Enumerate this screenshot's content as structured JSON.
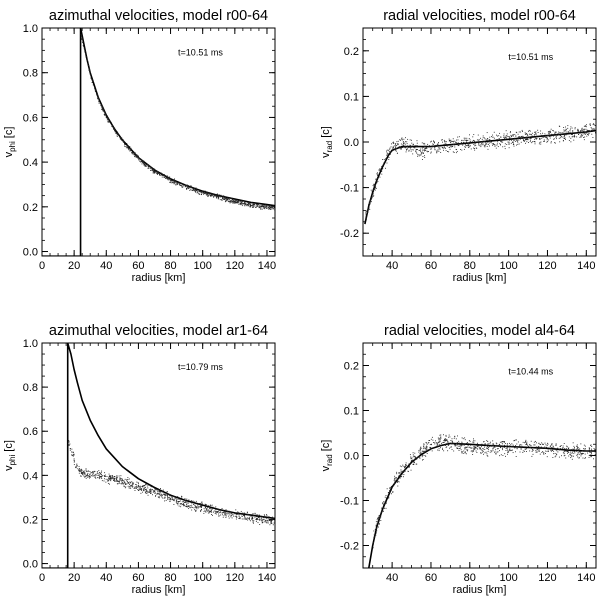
{
  "chart_data": [
    {
      "type": "scatter",
      "title": "azimuthal velocities, model r00-64",
      "xlabel": "radius [km]",
      "ylabel": "v",
      "ylabel_sub": "phi",
      "ylabel_unit": " [c]",
      "annotation": "t=10.51 ms",
      "xlim": [
        0,
        145
      ],
      "ylim": [
        -0.02,
        1.0
      ],
      "xticks": [
        0,
        20,
        40,
        60,
        80,
        100,
        120,
        140
      ],
      "yticks": [
        0.0,
        0.2,
        0.4,
        0.6,
        0.8,
        1.0
      ],
      "ytick_labels": [
        "0.0",
        "0.2",
        "0.4",
        "0.6",
        "0.8",
        "1.0"
      ],
      "vline_x": 24,
      "series": [
        {
          "kind": "line",
          "x": [
            24,
            26,
            28,
            30,
            35,
            40,
            45,
            50,
            60,
            70,
            80,
            90,
            100,
            110,
            120,
            130,
            140,
            145
          ],
          "y": [
            1.0,
            0.93,
            0.86,
            0.8,
            0.69,
            0.61,
            0.55,
            0.5,
            0.42,
            0.365,
            0.325,
            0.295,
            0.27,
            0.25,
            0.235,
            0.22,
            0.21,
            0.205
          ]
        },
        {
          "kind": "points",
          "x": [
            24,
            26,
            28,
            30,
            35,
            40,
            45,
            50,
            60,
            70,
            80,
            90,
            100,
            110,
            120,
            130,
            140,
            145
          ],
          "y": [
            0.98,
            0.91,
            0.85,
            0.79,
            0.68,
            0.6,
            0.545,
            0.495,
            0.415,
            0.36,
            0.32,
            0.29,
            0.265,
            0.245,
            0.225,
            0.21,
            0.2,
            0.195
          ],
          "spread": 0.01
        }
      ]
    },
    {
      "type": "scatter",
      "title": "radial velocities, model r00-64",
      "xlabel": "radius [km]",
      "ylabel": "v",
      "ylabel_sub": "rad",
      "ylabel_unit": " [c]",
      "annotation": "t=10.51 ms",
      "xlim": [
        25,
        145
      ],
      "ylim": [
        -0.25,
        0.25
      ],
      "xticks": [
        40,
        60,
        80,
        100,
        120,
        140
      ],
      "yticks": [
        -0.2,
        -0.1,
        0.0,
        0.1,
        0.2
      ],
      "ytick_labels": [
        "-0.2",
        "-0.1",
        "0.0",
        "0.1",
        "0.2"
      ],
      "series": [
        {
          "kind": "line",
          "x": [
            26,
            28,
            30,
            32,
            35,
            38,
            40,
            45,
            50,
            60,
            70,
            80,
            90,
            100,
            110,
            120,
            130,
            140,
            145
          ],
          "y": [
            -0.18,
            -0.14,
            -0.11,
            -0.085,
            -0.055,
            -0.03,
            -0.018,
            -0.01,
            -0.01,
            -0.01,
            -0.006,
            -0.002,
            0.002,
            0.006,
            0.01,
            0.014,
            0.018,
            0.022,
            0.025
          ]
        },
        {
          "kind": "points",
          "x": [
            26,
            28,
            30,
            32,
            35,
            38,
            40,
            45,
            50,
            55,
            60,
            70,
            80,
            90,
            100,
            110,
            120,
            130,
            140,
            145
          ],
          "y": [
            -0.17,
            -0.135,
            -0.105,
            -0.08,
            -0.05,
            -0.025,
            -0.012,
            -0.005,
            -0.01,
            -0.02,
            -0.01,
            -0.005,
            0.0,
            0.003,
            0.007,
            0.011,
            0.015,
            0.02,
            0.025,
            0.027
          ],
          "spread": 0.015
        }
      ]
    },
    {
      "type": "scatter",
      "title": "azimuthal velocities, model ar1-64",
      "xlabel": "radius [km]",
      "ylabel": "v",
      "ylabel_sub": "phi",
      "ylabel_unit": " [c]",
      "annotation": "t=10.79 ms",
      "xlim": [
        0,
        145
      ],
      "ylim": [
        -0.02,
        1.0
      ],
      "xticks": [
        0,
        20,
        40,
        60,
        80,
        100,
        120,
        140
      ],
      "yticks": [
        0.0,
        0.2,
        0.4,
        0.6,
        0.8,
        1.0
      ],
      "ytick_labels": [
        "0.0",
        "0.2",
        "0.4",
        "0.6",
        "0.8",
        "1.0"
      ],
      "vline_x": 16,
      "series": [
        {
          "kind": "line",
          "x": [
            16,
            18,
            20,
            22,
            25,
            30,
            35,
            40,
            45,
            50,
            60,
            70,
            80,
            90,
            100,
            110,
            120,
            130,
            140,
            145
          ],
          "y": [
            1.0,
            0.95,
            0.88,
            0.82,
            0.74,
            0.65,
            0.58,
            0.52,
            0.48,
            0.44,
            0.385,
            0.345,
            0.31,
            0.285,
            0.265,
            0.245,
            0.23,
            0.22,
            0.21,
            0.205
          ]
        },
        {
          "kind": "points",
          "x": [
            16,
            18,
            20,
            22,
            25,
            30,
            35,
            40,
            45,
            50,
            55,
            60,
            70,
            80,
            90,
            100,
            110,
            120,
            130,
            140,
            145
          ],
          "y": [
            0.55,
            0.52,
            0.47,
            0.43,
            0.41,
            0.405,
            0.4,
            0.39,
            0.385,
            0.375,
            0.36,
            0.345,
            0.33,
            0.3,
            0.275,
            0.255,
            0.235,
            0.22,
            0.21,
            0.2,
            0.195
          ],
          "spread": 0.02
        }
      ]
    },
    {
      "type": "scatter",
      "title": "radial velocities, model al4-64",
      "xlabel": "radius [km]",
      "ylabel": "v",
      "ylabel_sub": "rad",
      "ylabel_unit": " [c]",
      "annotation": "t=10.44 ms",
      "xlim": [
        25,
        145
      ],
      "ylim": [
        -0.25,
        0.25
      ],
      "xticks": [
        40,
        60,
        80,
        100,
        120,
        140
      ],
      "yticks": [
        -0.2,
        -0.1,
        0.0,
        0.1,
        0.2
      ],
      "ytick_labels": [
        "-0.2",
        "-0.1",
        "0.0",
        "0.1",
        "0.2"
      ],
      "series": [
        {
          "kind": "line",
          "x": [
            28,
            30,
            32,
            35,
            38,
            40,
            45,
            50,
            55,
            60,
            65,
            70,
            80,
            90,
            100,
            110,
            120,
            130,
            140,
            145
          ],
          "y": [
            -0.25,
            -0.2,
            -0.16,
            -0.12,
            -0.09,
            -0.07,
            -0.04,
            -0.015,
            0.002,
            0.015,
            0.022,
            0.027,
            0.025,
            0.022,
            0.02,
            0.018,
            0.016,
            0.012,
            0.01,
            0.01
          ]
        },
        {
          "kind": "points",
          "x": [
            30,
            32,
            35,
            38,
            40,
            45,
            50,
            55,
            60,
            65,
            70,
            75,
            80,
            90,
            100,
            110,
            120,
            130,
            140,
            145
          ],
          "y": [
            -0.19,
            -0.155,
            -0.115,
            -0.085,
            -0.065,
            -0.035,
            -0.01,
            0.008,
            0.022,
            0.03,
            0.03,
            0.025,
            0.02,
            0.018,
            0.02,
            0.019,
            0.015,
            0.012,
            0.01,
            0.008
          ],
          "spread": 0.015
        }
      ]
    }
  ]
}
